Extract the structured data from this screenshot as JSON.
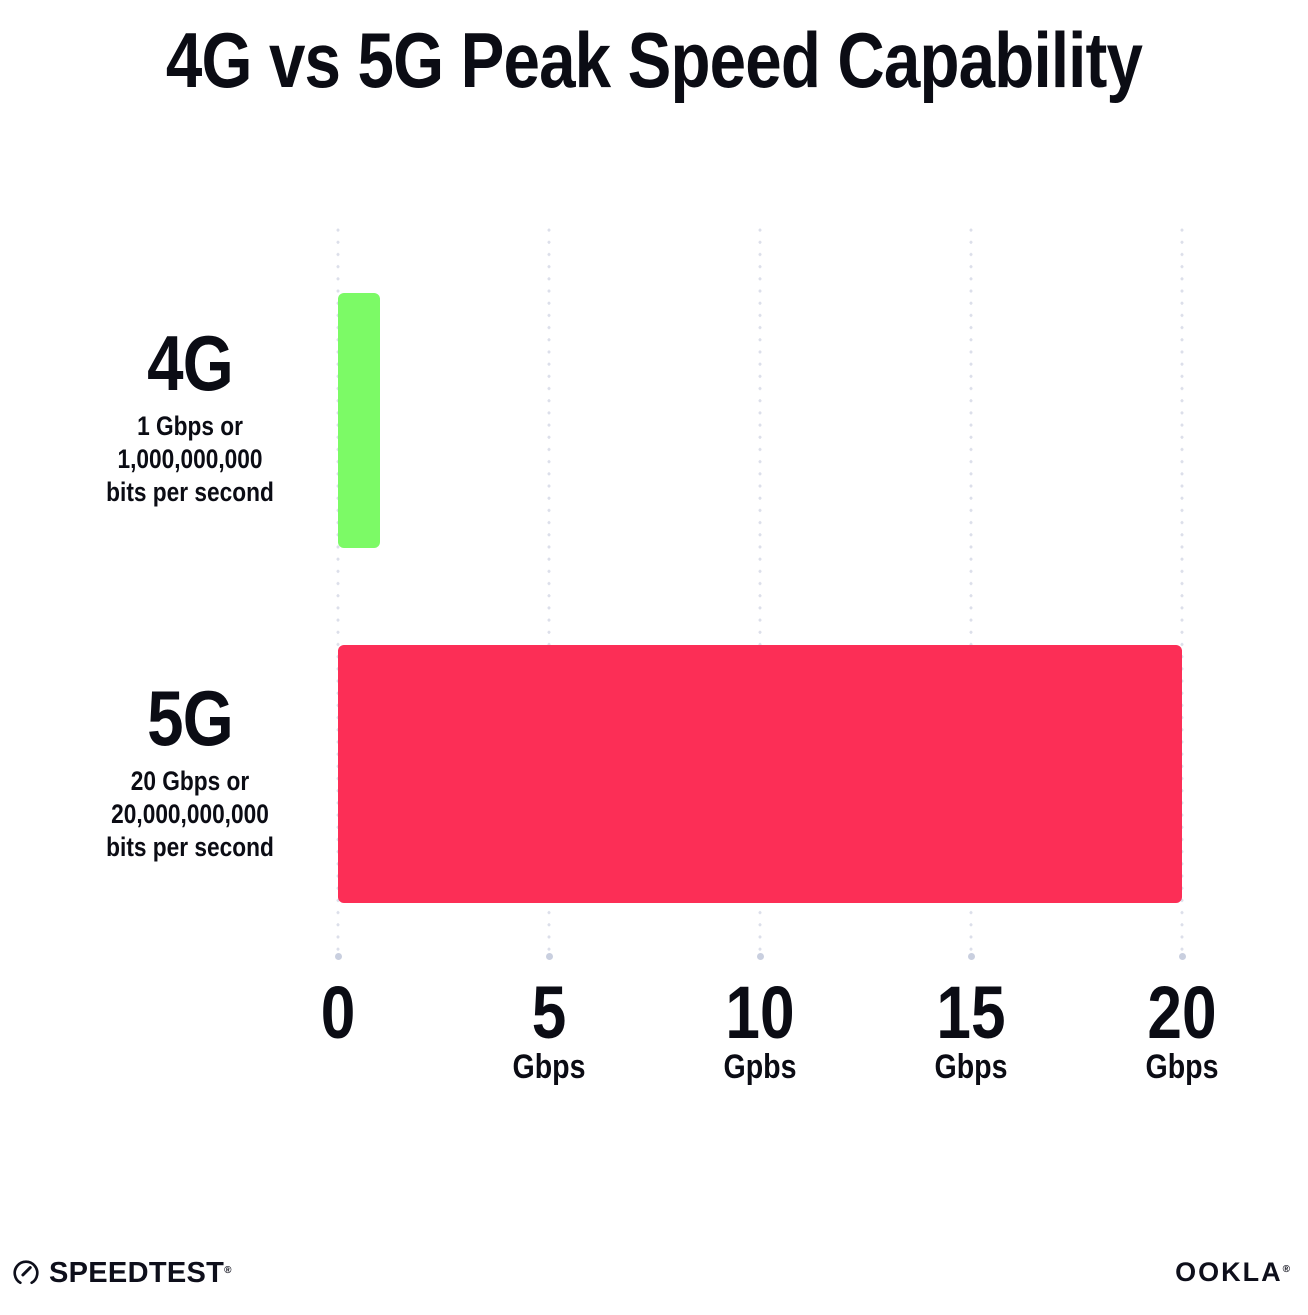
{
  "chart_data": {
    "type": "bar",
    "orientation": "horizontal",
    "title": "4G vs 5G Peak Speed Capability",
    "categories": [
      "4G",
      "5G"
    ],
    "values": [
      1,
      20
    ],
    "value_unit": "Gbps",
    "xlim": [
      0,
      20
    ],
    "bar_colors": [
      "#7CFA66",
      "#FC2E56"
    ],
    "grid": "dotted vertical gridlines every 5 Gbps, end dot at bottom",
    "legend": "none",
    "row_labels": [
      {
        "name": "4G",
        "line1": "1 Gbps or",
        "line2": "1,000,000,000",
        "line3": "bits per second"
      },
      {
        "name": "5G",
        "line1": "20 Gbps or",
        "line2": "20,000,000,000",
        "line3": "bits per second"
      }
    ],
    "ticks": [
      {
        "value": 0,
        "label": "0",
        "unit": ""
      },
      {
        "value": 5,
        "label": "5",
        "unit": "Gbps"
      },
      {
        "value": 10,
        "label": "10",
        "unit": "Gpbs"
      },
      {
        "value": 15,
        "label": "15",
        "unit": "Gbps"
      },
      {
        "value": 20,
        "label": "20",
        "unit": "Gbps"
      }
    ]
  },
  "footer": {
    "speedtest_label": "SPEEDTEST",
    "speedtest_trademark": "®",
    "ookla_label": "OOKLA",
    "ookla_trademark": "®"
  },
  "colors": {
    "background": "#FFFFFF",
    "text": "#0B0C14",
    "bar_4g": "#7CFA66",
    "bar_5g": "#FC2E56",
    "grid_dot": "#DCDFEA",
    "axis_end_dot": "#C9CFDF"
  }
}
